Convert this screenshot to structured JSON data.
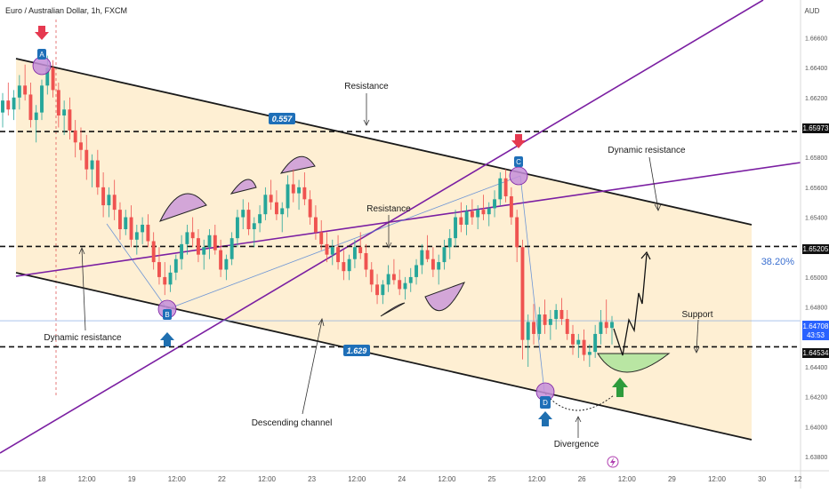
{
  "chart_data": {
    "type": "candlestick",
    "title": "Euro / Australian Dollar, 1h, FXCM",
    "currency": "AUD",
    "x_tick_labels": [
      "18",
      "12:00",
      "19",
      "12:00",
      "22",
      "12:00",
      "23",
      "12:00",
      "24",
      "12:00",
      "25",
      "12:00",
      "26",
      "12:00",
      "29",
      "12:00",
      "30",
      "12"
    ],
    "y_ticks": [
      1.638,
      1.64,
      1.642,
      1.644,
      1.646,
      1.648,
      1.65,
      1.652,
      1.654,
      1.656,
      1.658,
      1.66,
      1.662,
      1.664,
      1.666
    ],
    "ylim": [
      1.63735,
      1.66745
    ],
    "levels": [
      {
        "id": "l1",
        "value": 1.65973,
        "label": "1.65973",
        "style": "dashed",
        "color": "#111111"
      },
      {
        "id": "l2",
        "value": 1.65205,
        "label": "1.65205",
        "style": "dashed",
        "color": "#111111"
      },
      {
        "id": "l3",
        "value": 1.64534,
        "label": "1.64534",
        "style": "dashed",
        "color": "#111111"
      }
    ],
    "current_price": {
      "value": 1.64708,
      "label": "1.64708",
      "countdown": "43:53",
      "color": "#2962ff"
    },
    "fib_label": "38.20%",
    "point_labels": [
      "A",
      "B",
      "C",
      "D"
    ],
    "line_value_tags": [
      "0.557",
      "1.629"
    ],
    "annotations": [
      "Resistance",
      "Dynamic resistance",
      "Resistance",
      "Dynamic resistance",
      "Descending channel",
      "Support",
      "Divergence"
    ],
    "candles": [
      [
        1.661,
        1.6623,
        1.66,
        1.6618
      ],
      [
        1.6618,
        1.663,
        1.6608,
        1.6612
      ],
      [
        1.6612,
        1.6625,
        1.6605,
        1.662
      ],
      [
        1.662,
        1.6635,
        1.6612,
        1.6628
      ],
      [
        1.6628,
        1.6642,
        1.6618,
        1.6622
      ],
      [
        1.6622,
        1.663,
        1.66,
        1.6605
      ],
      [
        1.6605,
        1.6615,
        1.659,
        1.661
      ],
      [
        1.661,
        1.6632,
        1.6605,
        1.6628
      ],
      [
        1.6628,
        1.6648,
        1.6622,
        1.664
      ],
      [
        1.664,
        1.6645,
        1.662,
        1.6625
      ],
      [
        1.6625,
        1.663,
        1.66,
        1.6608
      ],
      [
        1.6608,
        1.6618,
        1.6595,
        1.6612
      ],
      [
        1.6612,
        1.662,
        1.6592,
        1.6598
      ],
      [
        1.6598,
        1.6605,
        1.658,
        1.659
      ],
      [
        1.659,
        1.66,
        1.6578,
        1.6585
      ],
      [
        1.6585,
        1.6595,
        1.6565,
        1.6572
      ],
      [
        1.6572,
        1.6582,
        1.656,
        1.6578
      ],
      [
        1.6578,
        1.6585,
        1.6555,
        1.656
      ],
      [
        1.656,
        1.657,
        1.654,
        1.6548
      ],
      [
        1.6548,
        1.656,
        1.654,
        1.6555
      ],
      [
        1.6555,
        1.6565,
        1.6538,
        1.6545
      ],
      [
        1.6545,
        1.655,
        1.6525,
        1.6532
      ],
      [
        1.6532,
        1.6545,
        1.6528,
        1.654
      ],
      [
        1.654,
        1.6548,
        1.652,
        1.6525
      ],
      [
        1.6525,
        1.6535,
        1.6515,
        1.653
      ],
      [
        1.653,
        1.654,
        1.6522,
        1.6535
      ],
      [
        1.6535,
        1.6542,
        1.652,
        1.6524
      ],
      [
        1.6524,
        1.653,
        1.6505,
        1.651
      ],
      [
        1.651,
        1.652,
        1.6495,
        1.65
      ],
      [
        1.65,
        1.651,
        1.6488,
        1.6495
      ],
      [
        1.6495,
        1.6508,
        1.649,
        1.6503
      ],
      [
        1.6503,
        1.6515,
        1.6498,
        1.6512
      ],
      [
        1.6512,
        1.6528,
        1.6505,
        1.6522
      ],
      [
        1.6522,
        1.6535,
        1.6515,
        1.653
      ],
      [
        1.653,
        1.654,
        1.652,
        1.6526
      ],
      [
        1.6526,
        1.6532,
        1.651,
        1.6515
      ],
      [
        1.6515,
        1.6525,
        1.6505,
        1.652
      ],
      [
        1.652,
        1.6532,
        1.6512,
        1.6528
      ],
      [
        1.6528,
        1.6535,
        1.6515,
        1.6518
      ],
      [
        1.6518,
        1.6525,
        1.65,
        1.6505
      ],
      [
        1.6505,
        1.6515,
        1.6498,
        1.6512
      ],
      [
        1.6512,
        1.653,
        1.6508,
        1.6526
      ],
      [
        1.6526,
        1.6545,
        1.652,
        1.654
      ],
      [
        1.654,
        1.6552,
        1.6532,
        1.6545
      ],
      [
        1.6545,
        1.655,
        1.6528,
        1.6532
      ],
      [
        1.6532,
        1.654,
        1.652,
        1.6536
      ],
      [
        1.6536,
        1.6548,
        1.653,
        1.6542
      ],
      [
        1.6542,
        1.656,
        1.6538,
        1.6555
      ],
      [
        1.6555,
        1.6565,
        1.6545,
        1.655
      ],
      [
        1.655,
        1.6558,
        1.6538,
        1.6542
      ],
      [
        1.6542,
        1.655,
        1.653,
        1.6546
      ],
      [
        1.6546,
        1.6568,
        1.654,
        1.6562
      ],
      [
        1.6562,
        1.6572,
        1.655,
        1.6556
      ],
      [
        1.6556,
        1.6565,
        1.6545,
        1.656
      ],
      [
        1.656,
        1.657,
        1.6548,
        1.6552
      ],
      [
        1.6552,
        1.6558,
        1.6535,
        1.654
      ],
      [
        1.654,
        1.6548,
        1.6525,
        1.653
      ],
      [
        1.653,
        1.6538,
        1.6518,
        1.6522
      ],
      [
        1.6522,
        1.653,
        1.651,
        1.6515
      ],
      [
        1.6515,
        1.6525,
        1.6508,
        1.652
      ],
      [
        1.652,
        1.6528,
        1.6505,
        1.651
      ],
      [
        1.651,
        1.6518,
        1.6498,
        1.6504
      ],
      [
        1.6504,
        1.6515,
        1.6498,
        1.6512
      ],
      [
        1.6512,
        1.6525,
        1.6506,
        1.652
      ],
      [
        1.652,
        1.653,
        1.6512,
        1.6516
      ],
      [
        1.6516,
        1.6522,
        1.65,
        1.6505
      ],
      [
        1.6505,
        1.651,
        1.649,
        1.6495
      ],
      [
        1.6495,
        1.6502,
        1.6482,
        1.6488
      ],
      [
        1.6488,
        1.6498,
        1.6482,
        1.6495
      ],
      [
        1.6495,
        1.6508,
        1.649,
        1.6502
      ],
      [
        1.6502,
        1.6512,
        1.6495,
        1.6498
      ],
      [
        1.6498,
        1.6505,
        1.6488,
        1.6492
      ],
      [
        1.6492,
        1.65,
        1.6485,
        1.6496
      ],
      [
        1.6496,
        1.6506,
        1.649,
        1.65
      ],
      [
        1.65,
        1.6512,
        1.6495,
        1.6508
      ],
      [
        1.6508,
        1.6522,
        1.6502,
        1.6518
      ],
      [
        1.6518,
        1.6528,
        1.651,
        1.6512
      ],
      [
        1.6512,
        1.652,
        1.65,
        1.6505
      ],
      [
        1.6505,
        1.6515,
        1.6495,
        1.651
      ],
      [
        1.651,
        1.6525,
        1.6505,
        1.652
      ],
      [
        1.652,
        1.6532,
        1.6512,
        1.6526
      ],
      [
        1.6526,
        1.6545,
        1.652,
        1.654
      ],
      [
        1.654,
        1.655,
        1.653,
        1.6535
      ],
      [
        1.6535,
        1.6548,
        1.6528,
        1.6544
      ],
      [
        1.6544,
        1.6552,
        1.6535,
        1.654
      ],
      [
        1.654,
        1.6548,
        1.6532,
        1.6545
      ],
      [
        1.6545,
        1.6555,
        1.6538,
        1.6542
      ],
      [
        1.6542,
        1.655,
        1.6534,
        1.6546
      ],
      [
        1.6546,
        1.6558,
        1.654,
        1.6552
      ],
      [
        1.6552,
        1.657,
        1.6548,
        1.6566
      ],
      [
        1.6566,
        1.6572,
        1.655,
        1.6554
      ],
      [
        1.6554,
        1.656,
        1.6535,
        1.654
      ],
      [
        1.654,
        1.6545,
        1.651,
        1.652
      ],
      [
        1.652,
        1.6525,
        1.6445,
        1.6458
      ],
      [
        1.6458,
        1.6475,
        1.644,
        1.647
      ],
      [
        1.647,
        1.6482,
        1.6455,
        1.6462
      ],
      [
        1.6462,
        1.648,
        1.6458,
        1.6475
      ],
      [
        1.6475,
        1.6485,
        1.6462,
        1.6468
      ],
      [
        1.6468,
        1.6478,
        1.6458,
        1.6472
      ],
      [
        1.6472,
        1.6482,
        1.6465,
        1.6478
      ],
      [
        1.6478,
        1.6486,
        1.6468,
        1.6472
      ],
      [
        1.6472,
        1.6478,
        1.6458,
        1.6462
      ],
      [
        1.6462,
        1.6468,
        1.6448,
        1.6455
      ],
      [
        1.6455,
        1.6462,
        1.6446,
        1.6458
      ],
      [
        1.6458,
        1.6465,
        1.6444,
        1.6448
      ],
      [
        1.6448,
        1.6455,
        1.644,
        1.645
      ],
      [
        1.645,
        1.6468,
        1.6446,
        1.6462
      ],
      [
        1.6462,
        1.6478,
        1.6455,
        1.647
      ],
      [
        1.647,
        1.6485,
        1.6462,
        1.6466
      ],
      [
        1.6466,
        1.6474,
        1.6455,
        1.647
      ]
    ]
  },
  "header": {
    "title": "Euro / Australian Dollar, 1h, FXCM"
  },
  "axis": {
    "currency": "AUD"
  },
  "tags": {
    "tag1": "0.557",
    "tag2": "1.629"
  },
  "points": {
    "a": "A",
    "b": "B",
    "c": "C",
    "d": "D"
  },
  "labels": {
    "resistance_top": "Resistance",
    "dynamic_resistance_right": "Dynamic resistance",
    "resistance_mid": "Resistance",
    "dynamic_resistance_left": "Dynamic resistance",
    "descending_channel": "Descending channel",
    "support": "Support",
    "divergence": "Divergence",
    "fib": "38.20%"
  },
  "price_boxes": {
    "l1": "1.65973",
    "l2": "1.65205",
    "l3": "1.64534",
    "current": "1.64708",
    "countdown": "43:53"
  },
  "colors": {
    "bull": "#26a69a",
    "bear": "#ef5350",
    "channel": "#7b1fa2",
    "zone": "#fde9c4",
    "marker": "#c48ed9",
    "tag": "#1e6fb8",
    "support_cap": "#b9e6a3",
    "arrow_red": "#e53950",
    "arrow_blue": "#1f6fb0",
    "arrow_green": "#2e9b3c"
  }
}
